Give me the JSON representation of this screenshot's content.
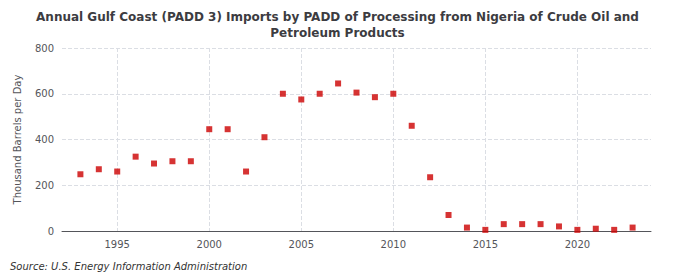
{
  "chart_data": {
    "type": "scatter",
    "title": "Annual Gulf Coast (PADD 3) Imports by PADD of Processing from Nigeria of Crude Oil and\nPetroleum Products",
    "ylabel": "Thousand Barrels per Day",
    "annotations": [
      "Source: U.S. Energy Information Administration"
    ],
    "x": [
      1993,
      1994,
      1995,
      1996,
      1997,
      1998,
      1999,
      2000,
      2001,
      2002,
      2003,
      2004,
      2005,
      2006,
      2007,
      2008,
      2009,
      2010,
      2011,
      2012,
      2013,
      2014,
      2015,
      2016,
      2017,
      2018,
      2019,
      2020,
      2021,
      2022,
      2023
    ],
    "values": [
      248,
      270,
      260,
      325,
      295,
      305,
      305,
      445,
      445,
      260,
      410,
      600,
      575,
      600,
      645,
      605,
      585,
      600,
      460,
      235,
      70,
      15,
      5,
      30,
      30,
      30,
      20,
      5,
      10,
      5,
      15
    ],
    "color": "#cc0000",
    "marker": "square",
    "xlim": [
      1992,
      2024
    ],
    "xticks": [
      1995,
      2000,
      2005,
      2010,
      2015,
      2020
    ],
    "ylim": [
      0,
      800
    ],
    "yticks": [
      0,
      200,
      400,
      600,
      800
    ],
    "grid": true
  }
}
